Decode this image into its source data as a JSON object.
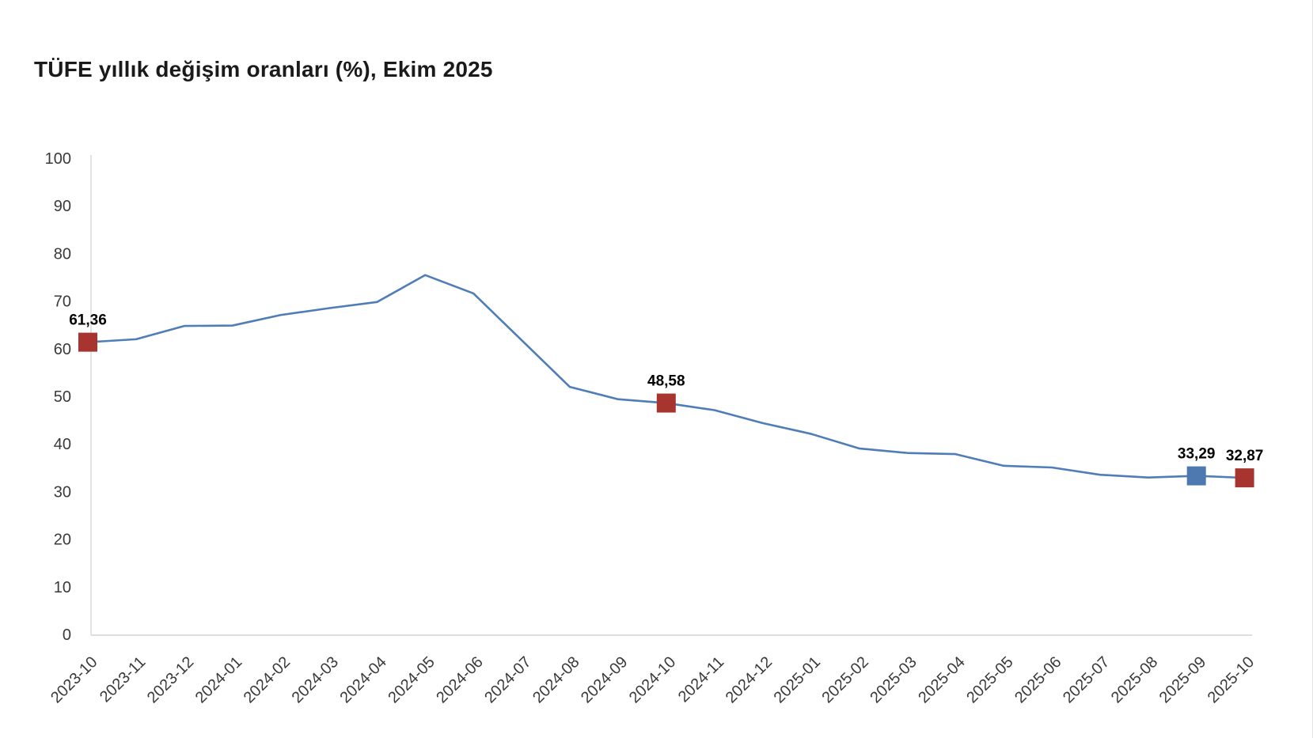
{
  "page": {
    "title": "TÜFE yıllık değişim oranları (%), Ekim 2025"
  },
  "chart_data": {
    "type": "line",
    "title": "TÜFE yıllık değişim oranları (%), Ekim 2025",
    "categories": [
      "2023-10",
      "2023-11",
      "2023-12",
      "2024-01",
      "2024-02",
      "2024-03",
      "2024-04",
      "2024-05",
      "2024-06",
      "2024-07",
      "2024-08",
      "2024-09",
      "2024-10",
      "2024-11",
      "2024-12",
      "2025-01",
      "2025-02",
      "2025-03",
      "2025-04",
      "2025-05",
      "2025-06",
      "2025-07",
      "2025-08",
      "2025-09",
      "2025-10"
    ],
    "series": [
      {
        "name": "TÜFE yıllık değişim oranı (%)",
        "values": [
          61.36,
          61.98,
          64.77,
          64.86,
          67.07,
          68.5,
          69.8,
          75.45,
          71.6,
          61.78,
          51.97,
          49.38,
          48.58,
          47.09,
          44.38,
          42.12,
          39.05,
          38.1,
          37.86,
          35.41,
          35.05,
          33.52,
          32.95,
          33.29,
          32.87
        ]
      }
    ],
    "highlights": [
      {
        "category": "2023-10",
        "value": 61.36,
        "label": "61,36",
        "color": "#a8342f"
      },
      {
        "category": "2024-10",
        "value": 48.58,
        "label": "48,58",
        "color": "#a8342f"
      },
      {
        "category": "2025-09",
        "value": 33.29,
        "label": "33,29",
        "color": "#4d79b0"
      },
      {
        "category": "2025-10",
        "value": 32.87,
        "label": "32,87",
        "color": "#a8342f"
      }
    ],
    "xlabel": "",
    "ylabel": "",
    "ylim": [
      0,
      100
    ],
    "y_ticks": [
      0,
      10,
      20,
      30,
      40,
      50,
      60,
      70,
      80,
      90,
      100
    ],
    "grid": false,
    "legend_position": "none",
    "x_tick_rotation": -45,
    "decimal_separator": ",",
    "colors": {
      "line": "#4e7db8",
      "axis_line": "#dedede",
      "tick_label": "#3a3a3a",
      "data_label": "#000000",
      "title": "#1a1a1a"
    }
  }
}
